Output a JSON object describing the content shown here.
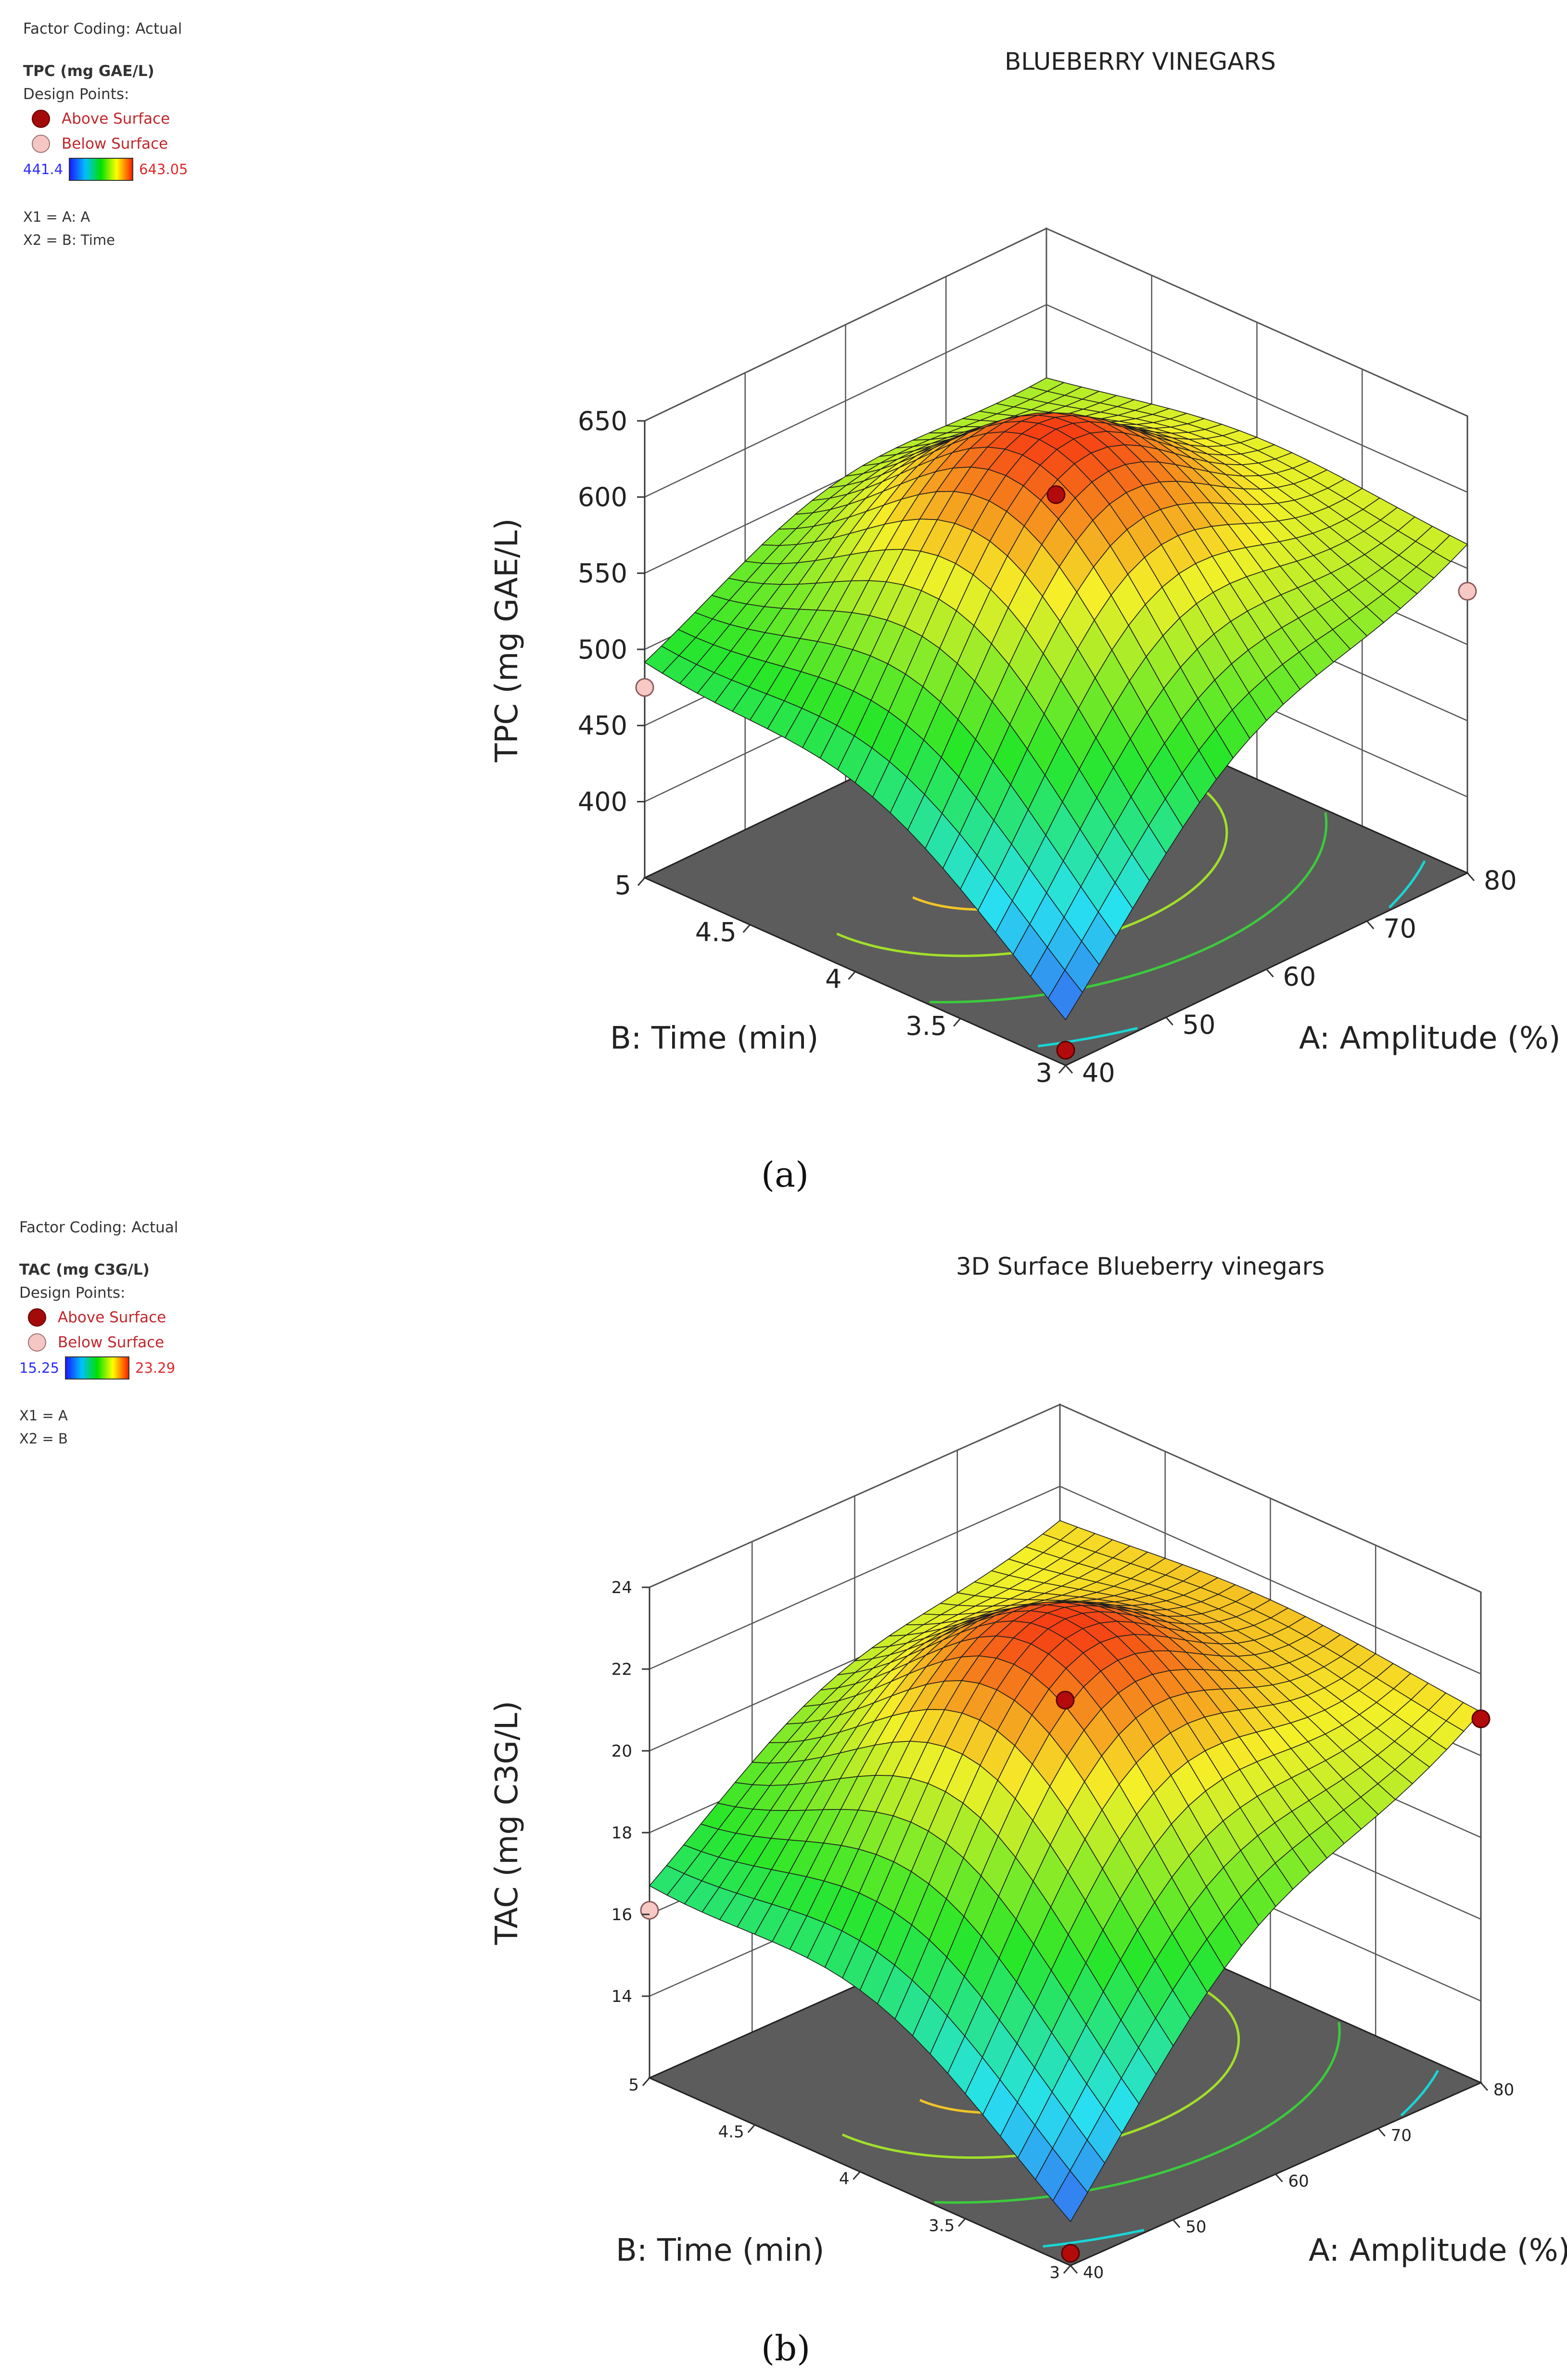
{
  "chart_data": [
    {
      "type": "surface3d",
      "title": "BLUEBERRY VINEGARS",
      "panel_label": "(a)",
      "legend": {
        "factor_coding": "Factor Coding: Actual",
        "response": "TPC (mg GAE/L)",
        "design_points_label": "Design Points:",
        "above_label": "Above Surface",
        "below_label": "Below Surface",
        "color_min": "441.4",
        "color_max": "643.05",
        "x1": "X1 = A: A",
        "x2": "X2 = B: Time"
      },
      "xlabel": "A: Amplitude (%)",
      "ylabel": "B: Time (min)",
      "zlabel": "TPC (mg GAE/L)",
      "x_ticks": [
        "40",
        "50",
        "60",
        "70",
        "80"
      ],
      "y_ticks": [
        "3",
        "3.5",
        "4",
        "4.5",
        "5"
      ],
      "z_ticks": [
        "400",
        "450",
        "500",
        "550",
        "600",
        "650"
      ],
      "xlim": [
        40,
        80
      ],
      "ylim": [
        3,
        5
      ],
      "zlim": [
        350,
        650
      ],
      "model": {
        "f00": 360,
        "f10": 560,
        "f01": 480,
        "f11": 545,
        "peak": 643.05
      },
      "design_points": [
        {
          "A": 40,
          "B": 3,
          "value": 360,
          "position": "above"
        },
        {
          "A": 60,
          "B": 4,
          "value": 600,
          "position": "above"
        },
        {
          "A": 40,
          "B": 5,
          "value": 475,
          "position": "below"
        },
        {
          "A": 80,
          "B": 3,
          "value": 535,
          "position": "below"
        }
      ],
      "contour_levels": [
        400,
        450,
        500,
        550,
        600
      ]
    },
    {
      "type": "surface3d",
      "title": "3D Surface Blueberry vinegars",
      "panel_label": "(b)",
      "legend": {
        "factor_coding": "Factor Coding: Actual",
        "response": "TAC (mg C3G/L)",
        "design_points_label": "Design Points:",
        "above_label": "Above Surface",
        "below_label": "Below Surface",
        "color_min": "15.25",
        "color_max": "23.29",
        "x1": "X1 = A",
        "x2": "X2 = B"
      },
      "xlabel": "A: Amplitude (%)",
      "ylabel": "B: Time (min)",
      "zlabel": "TAC (mg C3G/L)",
      "x_ticks": [
        "40",
        "50",
        "60",
        "70",
        "80"
      ],
      "y_ticks": [
        "3",
        "3.5",
        "4",
        "4.5",
        "5"
      ],
      "z_ticks": [
        "14",
        "16",
        "18",
        "20",
        "22",
        "24"
      ],
      "xlim": [
        40,
        80
      ],
      "ylim": [
        3,
        5
      ],
      "zlim": [
        12,
        24
      ],
      "model": {
        "f00": 12.3,
        "f10": 20.9,
        "f01": 16.2,
        "f11": 21,
        "peak": 23.29
      },
      "design_points": [
        {
          "A": 40,
          "B": 3,
          "value": 12.3,
          "position": "above"
        },
        {
          "A": 60,
          "B": 4,
          "value": 21.3,
          "position": "above"
        },
        {
          "A": 40,
          "B": 5,
          "value": 16.1,
          "position": "below"
        },
        {
          "A": 80,
          "B": 3,
          "value": 20.9,
          "position": "above"
        }
      ],
      "contour_levels": [
        14,
        16,
        18,
        20,
        22
      ]
    }
  ]
}
